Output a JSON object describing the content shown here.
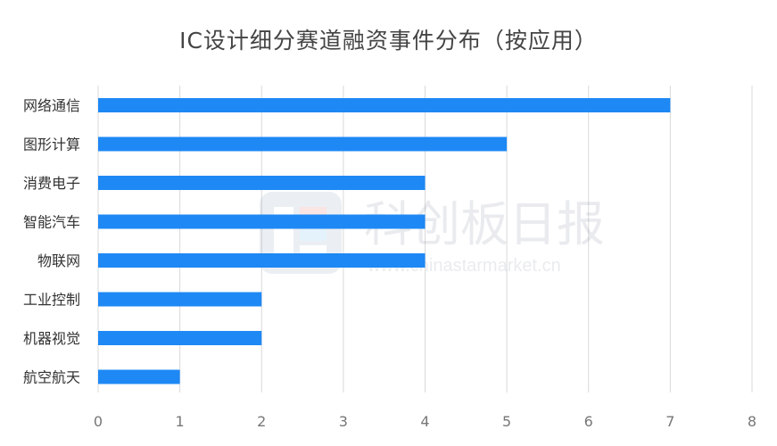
{
  "title": "IC设计细分赛道融资事件分布（按应用）",
  "watermark": {
    "brand": "科创板日报",
    "url": "www.chinastarmarket.cn"
  },
  "chart_data": {
    "type": "bar",
    "orientation": "horizontal",
    "title": "IC设计细分赛道融资事件分布（按应用）",
    "categories": [
      "网络通信",
      "图形计算",
      "消费电子",
      "智能汽车",
      "物联网",
      "工业控制",
      "机器视觉",
      "航空航天"
    ],
    "values": [
      7,
      5,
      4,
      4,
      4,
      2,
      2,
      1
    ],
    "xlim": [
      0,
      8
    ],
    "xticks": [
      0,
      1,
      2,
      3,
      4,
      5,
      6,
      7,
      8
    ],
    "grid": true,
    "legend": "none",
    "bar_color": "#1e88f5"
  }
}
